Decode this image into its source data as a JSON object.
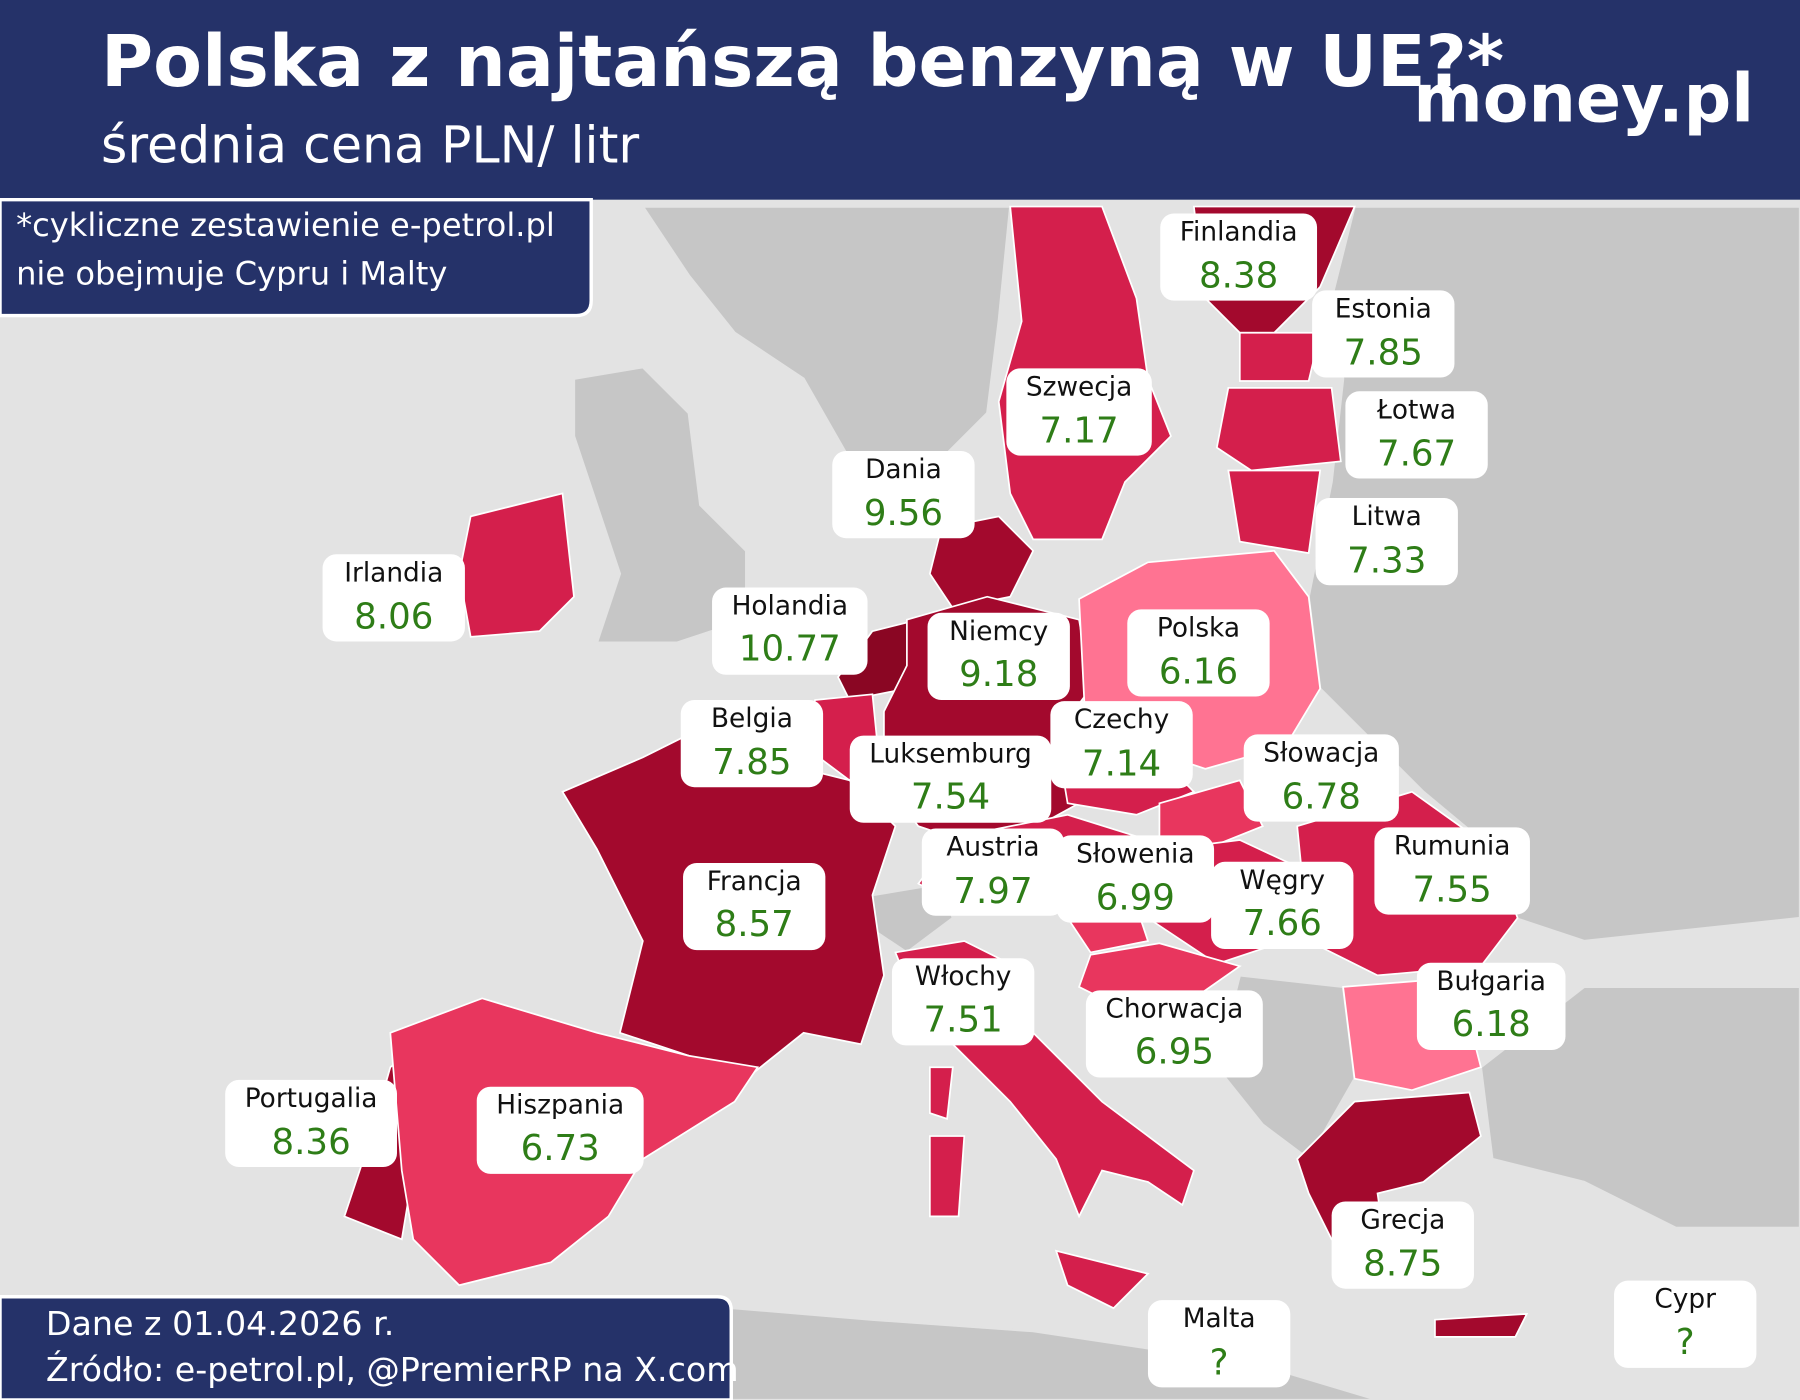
{
  "header": {
    "title": "Polska z najtańszą benzyną w UE?*",
    "subtitle": "średnia cena PLN/ litr",
    "logo": "money.pl"
  },
  "note": [
    "*cykliczne zestawienie e-petrol.pl",
    "nie obejmuje Cypru i Malty"
  ],
  "footer": [
    "Dane z 01.04.2026 r.",
    "Źródło: e-petrol.pl, @PremierRP na X.com"
  ],
  "countries": [
    {
      "name": "Finlandia",
      "value": 8.38,
      "color": "#a3092d"
    },
    {
      "name": "Estonia",
      "value": 7.85,
      "color": "#d41f4c"
    },
    {
      "name": "Łotwa",
      "value": 7.67,
      "color": "#d41f4c"
    },
    {
      "name": "Szwecja",
      "value": 7.17,
      "color": "#d41f4c"
    },
    {
      "name": "Dania",
      "value": 9.56,
      "color": "#a3092d"
    },
    {
      "name": "Litwa",
      "value": 7.33,
      "color": "#d41f4c"
    },
    {
      "name": "Irlandia",
      "value": 8.06,
      "color": "#d41f4c"
    },
    {
      "name": "Holandia",
      "value": 10.77,
      "color": "#8a0623"
    },
    {
      "name": "Niemcy",
      "value": 9.18,
      "color": "#a3092d"
    },
    {
      "name": "Polska",
      "value": 6.16,
      "color": "#ff7392"
    },
    {
      "name": "Belgia",
      "value": 7.85,
      "color": "#d41f4c"
    },
    {
      "name": "Czechy",
      "value": 7.14,
      "color": "#d41f4c"
    },
    {
      "name": "Luksemburg",
      "value": 7.54,
      "color": "#d41f4c"
    },
    {
      "name": "Słowacja",
      "value": 6.78,
      "color": "#e8365e"
    },
    {
      "name": "Austria",
      "value": 7.97,
      "color": "#d41f4c"
    },
    {
      "name": "Słowenia",
      "value": 6.99,
      "color": "#e8365e"
    },
    {
      "name": "Węgry",
      "value": 7.66,
      "color": "#d41f4c"
    },
    {
      "name": "Rumunia",
      "value": 7.55,
      "color": "#d41f4c"
    },
    {
      "name": "Francja",
      "value": 8.57,
      "color": "#a3092d"
    },
    {
      "name": "Włochy",
      "value": 7.51,
      "color": "#d41f4c"
    },
    {
      "name": "Chorwacja",
      "value": 6.95,
      "color": "#e8365e"
    },
    {
      "name": "Bułgaria",
      "value": 6.18,
      "color": "#ff7392"
    },
    {
      "name": "Portugalia",
      "value": 8.36,
      "color": "#a3092d"
    },
    {
      "name": "Hiszpania",
      "value": 6.73,
      "color": "#e8365e"
    },
    {
      "name": "Grecja",
      "value": 8.75,
      "color": "#a3092d"
    },
    {
      "name": "Malta",
      "value": "?"
    },
    {
      "name": "Cypr",
      "value": "?"
    }
  ]
}
